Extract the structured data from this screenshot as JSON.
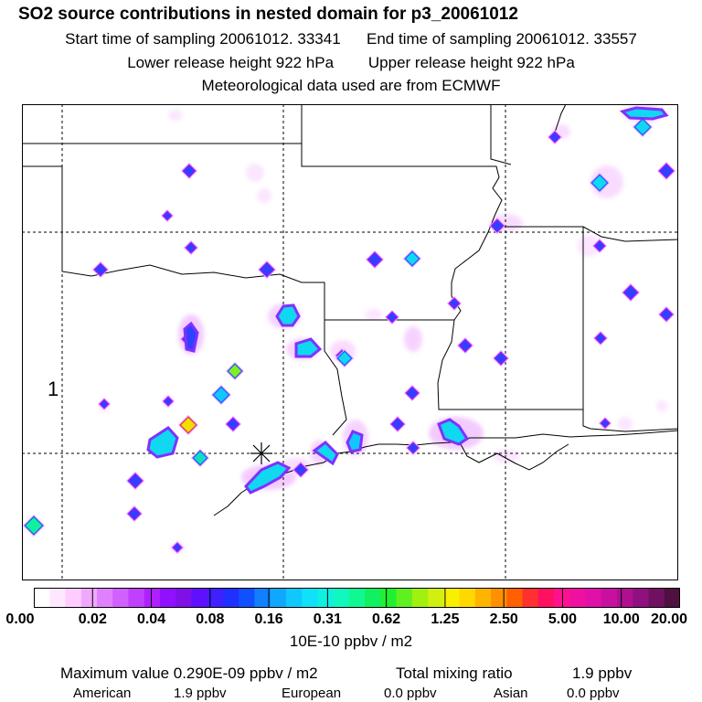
{
  "header": {
    "title": "SO2 source contributions in nested domain for p3_20061012",
    "start_label": "Start time of sampling 20061012. 33341",
    "end_label": "End time of sampling 20061012. 33557",
    "lower_label": "Lower release height  922 hPa",
    "upper_label": "Upper release height  922 hPa",
    "met_label": "Meteorological data used are from ECMWF"
  },
  "map": {
    "region_label": "1",
    "release_marker": "star-marker-icon",
    "colors": {
      "background": "#ffffff",
      "borders": "#000000"
    }
  },
  "legend": {
    "ticks": [
      "0.00",
      "0.02",
      "0.04",
      "0.08",
      "0.16",
      "0.31",
      "0.62",
      "1.25",
      "2.50",
      "5.00",
      "10.00",
      "20.00"
    ],
    "colors": [
      "#ffffff",
      "#ffe8ff",
      "#ffccff",
      "#f0a8ff",
      "#e080ff",
      "#d060ff",
      "#c040ff",
      "#b020ff",
      "#9010ff",
      "#8010e8",
      "#6010ff",
      "#4020ff",
      "#2030ff",
      "#1050ff",
      "#1080ff",
      "#10a8ff",
      "#10c8ff",
      "#10e0f8",
      "#10f0e0",
      "#10f8c0",
      "#10f890",
      "#10f060",
      "#20f030",
      "#60f020",
      "#a0f010",
      "#d0f010",
      "#f8f000",
      "#ffd800",
      "#ffb400",
      "#ff9000",
      "#ff6000",
      "#ff3030",
      "#ff1060",
      "#ff1090",
      "#f010a0",
      "#e010a8",
      "#c810a0",
      "#b01090",
      "#901080",
      "#701060",
      "#501040"
    ],
    "units": "10E-10 ppbv / m2"
  },
  "summary": {
    "max_label": "Maximum value  0.290E-09 ppbv / m2",
    "total_label": "Total mixing ratio",
    "total_value": "1.9 ppbv",
    "american_label": "American",
    "american_value": "1.9 ppbv",
    "european_label": "European",
    "european_value": "0.0 ppbv",
    "asian_label": "Asian",
    "asian_value": "0.0 ppbv"
  }
}
